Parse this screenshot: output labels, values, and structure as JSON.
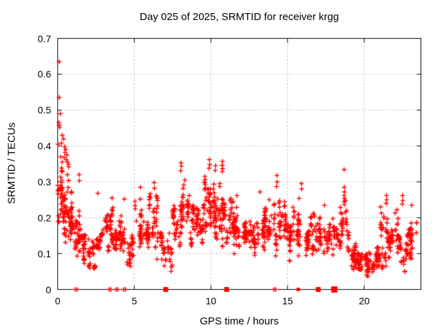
{
  "page": {
    "background": "#ffffff"
  },
  "chart_data": {
    "type": "scatter",
    "title": "Day 025 of 2025, SRMTID for receiver krgg",
    "xlabel": "GPS time / hours",
    "ylabel": "SRMTID / TECUs",
    "xlim": [
      0,
      23.7
    ],
    "ylim": [
      0,
      0.7
    ],
    "xticks": [
      0,
      5,
      10,
      15,
      20
    ],
    "yticks": [
      0,
      0.1,
      0.2,
      0.3,
      0.4,
      0.5,
      0.6,
      0.7
    ],
    "grid": "dotted",
    "grid_color": "#b4b4b4",
    "axis_color": "#000000",
    "background_color": "#ffffff",
    "marker": "plus",
    "marker_color": "#ff0000",
    "marker_size": 7,
    "seed": 20250125,
    "point_bands_format": [
      "x_start_hours",
      "x_end_hours",
      "y_min_tecu",
      "y_max_tecu",
      "count"
    ],
    "point_bands": [
      [
        0.0,
        0.5,
        0.13,
        0.36,
        55
      ],
      [
        0.5,
        1.0,
        0.12,
        0.32,
        45
      ],
      [
        1.0,
        1.5,
        0.08,
        0.24,
        38
      ],
      [
        1.5,
        2.0,
        0.05,
        0.18,
        30
      ],
      [
        2.0,
        2.5,
        0.04,
        0.14,
        28
      ],
      [
        2.5,
        3.0,
        0.06,
        0.2,
        30
      ],
      [
        3.0,
        3.5,
        0.08,
        0.24,
        34
      ],
      [
        3.5,
        4.0,
        0.1,
        0.25,
        34
      ],
      [
        4.0,
        4.5,
        0.08,
        0.26,
        30
      ],
      [
        4.5,
        5.0,
        0.05,
        0.17,
        28
      ],
      [
        5.0,
        5.5,
        0.08,
        0.27,
        32
      ],
      [
        5.5,
        6.0,
        0.1,
        0.22,
        30
      ],
      [
        6.0,
        6.5,
        0.1,
        0.28,
        32
      ],
      [
        6.5,
        7.0,
        0.06,
        0.19,
        26
      ],
      [
        7.0,
        7.5,
        0.04,
        0.17,
        20
      ],
      [
        7.5,
        8.0,
        0.1,
        0.27,
        30
      ],
      [
        8.0,
        8.5,
        0.12,
        0.33,
        34
      ],
      [
        8.5,
        9.0,
        0.1,
        0.28,
        34
      ],
      [
        9.0,
        9.5,
        0.12,
        0.27,
        34
      ],
      [
        9.5,
        10.0,
        0.13,
        0.32,
        40
      ],
      [
        10.0,
        10.5,
        0.12,
        0.3,
        38
      ],
      [
        10.5,
        11.0,
        0.12,
        0.32,
        36
      ],
      [
        11.0,
        11.5,
        0.1,
        0.26,
        34
      ],
      [
        11.5,
        12.0,
        0.1,
        0.26,
        32
      ],
      [
        12.0,
        12.5,
        0.1,
        0.22,
        32
      ],
      [
        12.5,
        13.0,
        0.08,
        0.22,
        30
      ],
      [
        13.0,
        13.5,
        0.1,
        0.26,
        32
      ],
      [
        13.5,
        14.0,
        0.1,
        0.26,
        30
      ],
      [
        14.0,
        14.5,
        0.08,
        0.3,
        28
      ],
      [
        14.5,
        15.0,
        0.1,
        0.26,
        30
      ],
      [
        15.0,
        15.5,
        0.08,
        0.24,
        30
      ],
      [
        15.5,
        16.0,
        0.08,
        0.27,
        30
      ],
      [
        16.0,
        16.5,
        0.08,
        0.24,
        30
      ],
      [
        16.5,
        17.0,
        0.06,
        0.22,
        28
      ],
      [
        17.0,
        17.5,
        0.06,
        0.21,
        28
      ],
      [
        17.5,
        18.0,
        0.07,
        0.22,
        26
      ],
      [
        18.0,
        18.5,
        0.06,
        0.2,
        26
      ],
      [
        18.5,
        19.0,
        0.08,
        0.3,
        30
      ],
      [
        19.0,
        19.5,
        0.05,
        0.14,
        30
      ],
      [
        19.5,
        20.0,
        0.04,
        0.12,
        32
      ],
      [
        20.0,
        20.5,
        0.03,
        0.11,
        34
      ],
      [
        20.5,
        21.0,
        0.04,
        0.12,
        34
      ],
      [
        21.0,
        21.5,
        0.05,
        0.23,
        32
      ],
      [
        21.5,
        22.0,
        0.06,
        0.19,
        30
      ],
      [
        22.0,
        22.5,
        0.06,
        0.23,
        30
      ],
      [
        22.5,
        23.0,
        0.05,
        0.19,
        30
      ],
      [
        23.0,
        23.55,
        0.06,
        0.2,
        26
      ]
    ],
    "outlier_points": [
      [
        0.1,
        0.635
      ],
      [
        0.1,
        0.535
      ],
      [
        0.18,
        0.49
      ],
      [
        0.08,
        0.465
      ],
      [
        0.1,
        0.458
      ],
      [
        0.13,
        0.452
      ],
      [
        0.3,
        0.43
      ],
      [
        0.38,
        0.42
      ],
      [
        0.02,
        0.405
      ],
      [
        0.25,
        0.408
      ],
      [
        0.45,
        0.398
      ],
      [
        0.52,
        0.39
      ],
      [
        0.48,
        0.382
      ],
      [
        0.6,
        0.375
      ],
      [
        0.42,
        0.368
      ],
      [
        0.56,
        0.362
      ],
      [
        0.65,
        0.355
      ],
      [
        0.7,
        0.349
      ],
      [
        0.72,
        0.342
      ],
      [
        0.3,
        0.355
      ],
      [
        0.2,
        0.37
      ],
      [
        1.4,
        0.32
      ],
      [
        1.42,
        0.303
      ],
      [
        2.62,
        0.268
      ],
      [
        3.55,
        0.255
      ],
      [
        4.35,
        0.252
      ],
      [
        5.4,
        0.285
      ],
      [
        6.3,
        0.298
      ],
      [
        6.32,
        0.282
      ],
      [
        8.05,
        0.353
      ],
      [
        8.07,
        0.344
      ],
      [
        8.03,
        0.331
      ],
      [
        8.3,
        0.305
      ],
      [
        9.6,
        0.315
      ],
      [
        9.62,
        0.306
      ],
      [
        9.58,
        0.298
      ],
      [
        9.63,
        0.292
      ],
      [
        9.9,
        0.362
      ],
      [
        9.92,
        0.348
      ],
      [
        9.88,
        0.338
      ],
      [
        10.3,
        0.345
      ],
      [
        10.28,
        0.332
      ],
      [
        10.75,
        0.357
      ],
      [
        10.73,
        0.346
      ],
      [
        10.76,
        0.337
      ],
      [
        10.74,
        0.329
      ],
      [
        11.7,
        0.262
      ],
      [
        13.2,
        0.272
      ],
      [
        13.8,
        0.25
      ],
      [
        14.3,
        0.318
      ],
      [
        14.32,
        0.3
      ],
      [
        14.28,
        0.287
      ],
      [
        15.9,
        0.295
      ],
      [
        15.92,
        0.28
      ],
      [
        17.4,
        0.235
      ],
      [
        18.69,
        0.334
      ],
      [
        18.7,
        0.285
      ],
      [
        18.71,
        0.272
      ],
      [
        18.68,
        0.262
      ],
      [
        18.72,
        0.253
      ],
      [
        18.69,
        0.245
      ],
      [
        18.7,
        0.237
      ],
      [
        21.45,
        0.262
      ],
      [
        21.47,
        0.25
      ],
      [
        21.43,
        0.24
      ],
      [
        22.5,
        0.262
      ],
      [
        22.52,
        0.248
      ],
      [
        22.48,
        0.238
      ],
      [
        23.1,
        0.235
      ]
    ],
    "zero_markers": [
      {
        "x": 1.15,
        "type": "plus"
      },
      {
        "x": 1.27,
        "type": "plus"
      },
      {
        "x": 3.35,
        "type": "plus"
      },
      {
        "x": 3.47,
        "type": "plus"
      },
      {
        "x": 3.8,
        "type": "plus"
      },
      {
        "x": 3.92,
        "type": "plus"
      },
      {
        "x": 4.3,
        "type": "plus"
      },
      {
        "x": 4.42,
        "type": "plus"
      },
      {
        "x": 7.05,
        "type": "square"
      },
      {
        "x": 11.02,
        "type": "square"
      },
      {
        "x": 14.1,
        "type": "plus"
      },
      {
        "x": 14.22,
        "type": "plus"
      },
      {
        "x": 15.7,
        "type": "square_small"
      },
      {
        "x": 17.0,
        "type": "square"
      },
      {
        "x": 18.05,
        "type": "square_large"
      }
    ]
  }
}
